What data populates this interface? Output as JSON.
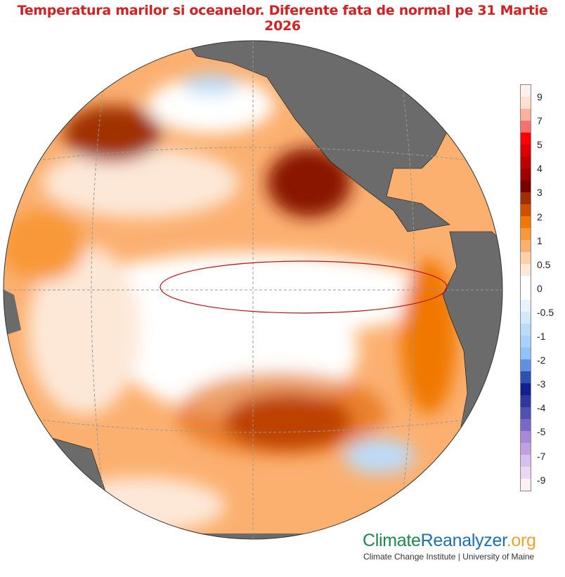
{
  "title": "Temperatura marilor si oceanelor. Diferente fata de normal pe 31 Martie 2026",
  "legend": {
    "labels": [
      "9",
      "7",
      "5",
      "4",
      "3",
      "2",
      "1",
      "0.5",
      "0",
      "-0.5",
      "-1",
      "-2",
      "-3",
      "-4",
      "-5",
      "-7",
      "-9"
    ],
    "colors": [
      "#fff0f0",
      "#fde0d0",
      "#fcb0a0",
      "#f87070",
      "#ff0000",
      "#dd0000",
      "#c00000",
      "#a00000",
      "#780000",
      "#a03000",
      "#d05000",
      "#f07800",
      "#f89838",
      "#fbb070",
      "#fdd0a8",
      "#fde8d8",
      "#ffffff",
      "#ffffff",
      "#e8f2ff",
      "#d4e8fc",
      "#bcdcf8",
      "#a8d0f8",
      "#90c4f8",
      "#6090e0",
      "#3050b0",
      "#102090",
      "#3038a0",
      "#5050b0",
      "#7868c8",
      "#a888d8",
      "#c0a0e0",
      "#d8c0ec",
      "#e8d8f0",
      "#fff0f4"
    ]
  },
  "brand": {
    "part1": "Climate",
    "part2": "Reanalyzer",
    "part3": ".org",
    "subtitle": "Climate Change Institute | University of Maine"
  }
}
